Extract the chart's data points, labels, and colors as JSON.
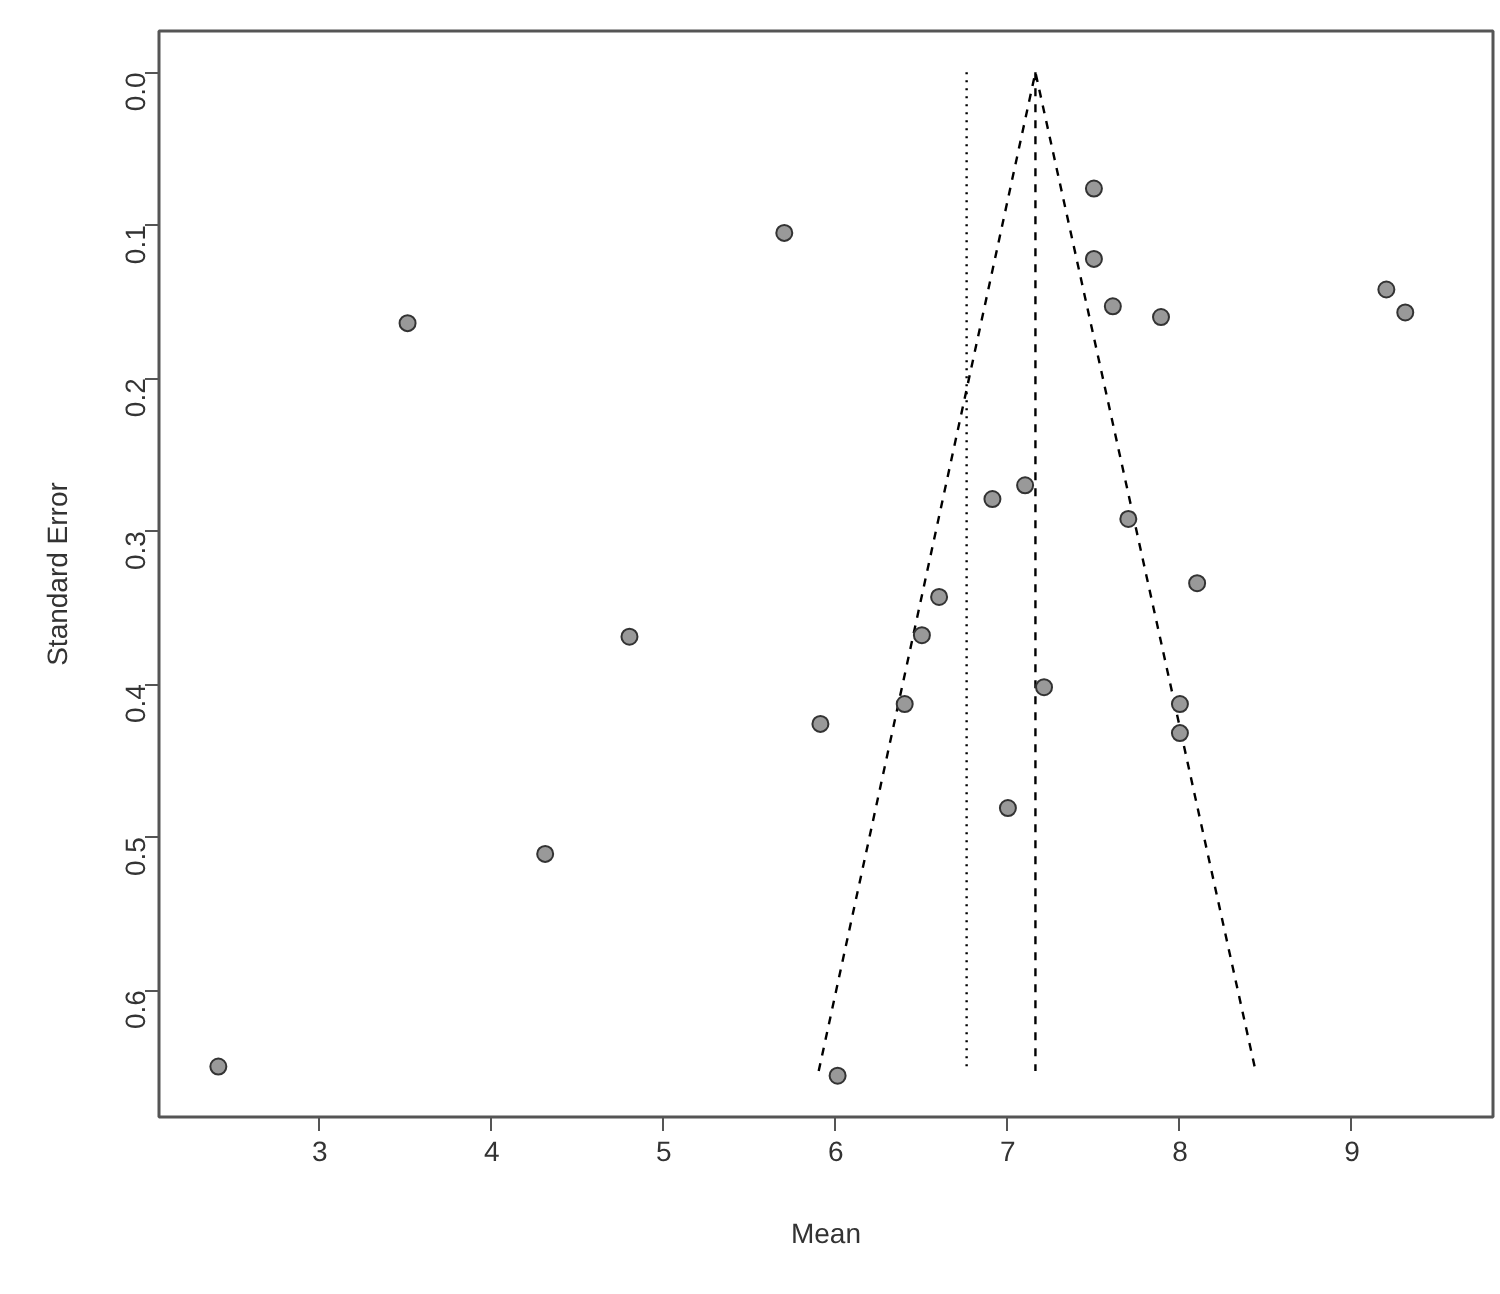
{
  "chart_data": {
    "type": "scatter",
    "xlabel": "Mean",
    "ylabel": "Standard Error",
    "xlim": [
      2.065,
      9.82
    ],
    "ylim": [
      0.683,
      -0.027
    ],
    "xticks": [
      3,
      4,
      5,
      6,
      7,
      8,
      9
    ],
    "yticks": [
      {
        "value": 0,
        "label": "0.0"
      },
      0.1,
      0.2,
      0.3,
      0.4,
      0.5,
      0.6
    ],
    "grid": false,
    "series": [
      {
        "marker": "circle",
        "color": "#999999",
        "x": [
          3.51,
          4.8,
          5.7,
          7.5,
          7.5,
          7.61,
          7.89,
          9.2,
          9.31,
          6.91,
          7.1,
          7.7,
          8.1,
          6.6,
          6.5,
          4.31,
          2.41,
          7.21,
          6.4,
          5.91,
          8.0,
          8.0,
          7.0,
          6.01
        ],
        "values": [
          0.164,
          0.369,
          0.105,
          0.076,
          0.122,
          0.153,
          0.16,
          0.142,
          0.157,
          0.279,
          0.27,
          0.292,
          0.334,
          0.343,
          0.368,
          0.511,
          0.65,
          0.402,
          0.413,
          0.426,
          0.413,
          0.432,
          0.481,
          0.656
        ]
      },
      {
        "type": "line",
        "marker": "none",
        "color": "#000000",
        "line_style": "dashed",
        "x": [
          5.9,
          7.16,
          8.44
        ],
        "values": [
          0.653,
          0.0,
          0.653
        ]
      },
      {
        "type": "line",
        "marker": "none",
        "color": "#000000",
        "line_style": "dashed",
        "x": [
          7.16,
          7.16
        ],
        "values": [
          0.0,
          0.653
        ]
      },
      {
        "type": "line",
        "marker": "none",
        "color": "#000000",
        "line_style": "dotted",
        "x": [
          6.76,
          6.76
        ],
        "values": [
          0.0,
          0.653
        ]
      }
    ]
  }
}
